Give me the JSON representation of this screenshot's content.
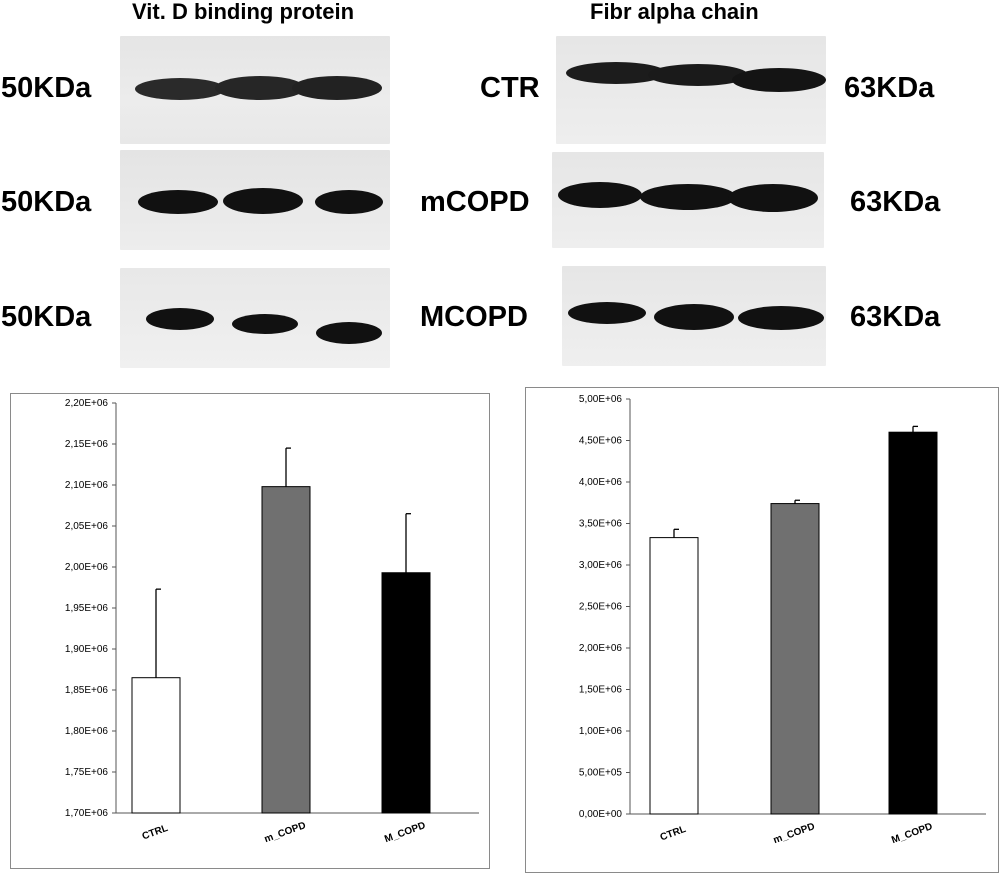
{
  "blots": {
    "left": {
      "title": "Vit. D binding protein",
      "rows": [
        {
          "mw": "50KDa"
        },
        {
          "mw": "50KDa"
        },
        {
          "mw": "50KDa"
        }
      ]
    },
    "right": {
      "title": "Fibr alpha chain",
      "rows": [
        {
          "group": "CTR",
          "mw": "63KDa"
        },
        {
          "group": "mCOPD",
          "mw": "63KDa"
        },
        {
          "group": "MCOPD",
          "mw": "63KDa"
        }
      ]
    }
  },
  "chart_data": [
    {
      "type": "bar",
      "categories": [
        "CTRL",
        "m_COPD",
        "M_COPD"
      ],
      "values": [
        1865000,
        2098000,
        1993000
      ],
      "error_plus": [
        108000,
        47000,
        72000
      ],
      "ylim": [
        1700000,
        2200000
      ],
      "ytick_values": [
        1700000,
        1750000,
        1800000,
        1850000,
        1900000,
        1950000,
        2000000,
        2050000,
        2100000,
        2150000,
        2200000
      ],
      "ytick_labels": [
        "1,70E+06",
        "1,75E+06",
        "1,80E+06",
        "1,85E+06",
        "1,90E+06",
        "1,95E+06",
        "2,00E+06",
        "2,05E+06",
        "2,10E+06",
        "2,15E+06",
        "2,20E+06"
      ],
      "bar_colors": [
        "#ffffff",
        "#707070",
        "#000000"
      ],
      "grid": false
    },
    {
      "type": "bar",
      "categories": [
        "CTRL",
        "m_COPD",
        "M_COPD"
      ],
      "values": [
        3330000,
        3740000,
        4600000
      ],
      "error_plus": [
        100000,
        40000,
        70000
      ],
      "ylim": [
        0,
        5000000
      ],
      "ytick_values": [
        0,
        500000,
        1000000,
        1500000,
        2000000,
        2500000,
        3000000,
        3500000,
        4000000,
        4500000,
        5000000
      ],
      "ytick_labels": [
        "0,00E+00",
        "5,00E+05",
        "1,00E+06",
        "1,50E+06",
        "2,00E+06",
        "2,50E+06",
        "3,00E+06",
        "3,50E+06",
        "4,00E+06",
        "4,50E+06",
        "5,00E+06"
      ],
      "bar_colors": [
        "#ffffff",
        "#707070",
        "#000000"
      ],
      "grid": false
    }
  ]
}
